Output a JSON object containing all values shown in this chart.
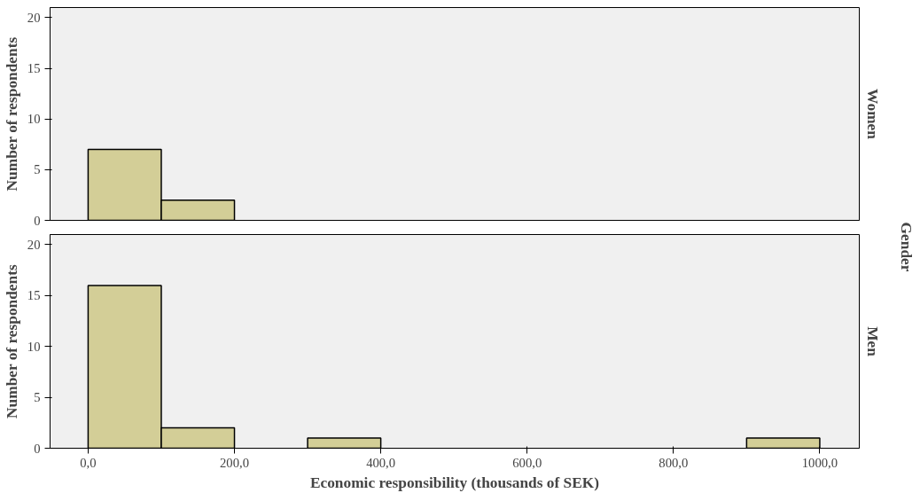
{
  "chart_data": [
    {
      "type": "histogram",
      "title": "Women",
      "ylabel": "Number of respondents",
      "annotations": [
        "Gender"
      ],
      "color": "#d3ce97",
      "bins": [
        0,
        100,
        200,
        300,
        400,
        500,
        600,
        700,
        800,
        900,
        1000
      ],
      "values": [
        7,
        2,
        0,
        0,
        0,
        0,
        0,
        0,
        0,
        0
      ],
      "xlim": [
        -52,
        1054
      ],
      "ylim": [
        0,
        21
      ],
      "yticks": [
        0,
        5,
        10,
        15,
        20
      ],
      "tick_labels": "y",
      "grid": false
    },
    {
      "type": "histogram",
      "title": "Men",
      "ylabel": "Number of respondents",
      "xlabel": "Economic responsibility (thousands of SEK)",
      "color": "#d3ce97",
      "bins": [
        0,
        100,
        200,
        300,
        400,
        500,
        600,
        700,
        800,
        900,
        1000
      ],
      "values": [
        16,
        2,
        0,
        1,
        0,
        0,
        0,
        0,
        0,
        1
      ],
      "xlim": [
        -52,
        1054
      ],
      "xticks": [
        {
          "value": 0,
          "label": "0,0"
        },
        {
          "value": 200,
          "label": "200,0"
        },
        {
          "value": 400,
          "label": "400,0"
        },
        {
          "value": 600,
          "label": "600,0"
        },
        {
          "value": 800,
          "label": "800,0"
        },
        {
          "value": 1000,
          "label": "1000,0"
        }
      ],
      "ylim": [
        0,
        21
      ],
      "yticks": [
        0,
        5,
        10,
        15,
        20
      ],
      "grid": false
    }
  ]
}
